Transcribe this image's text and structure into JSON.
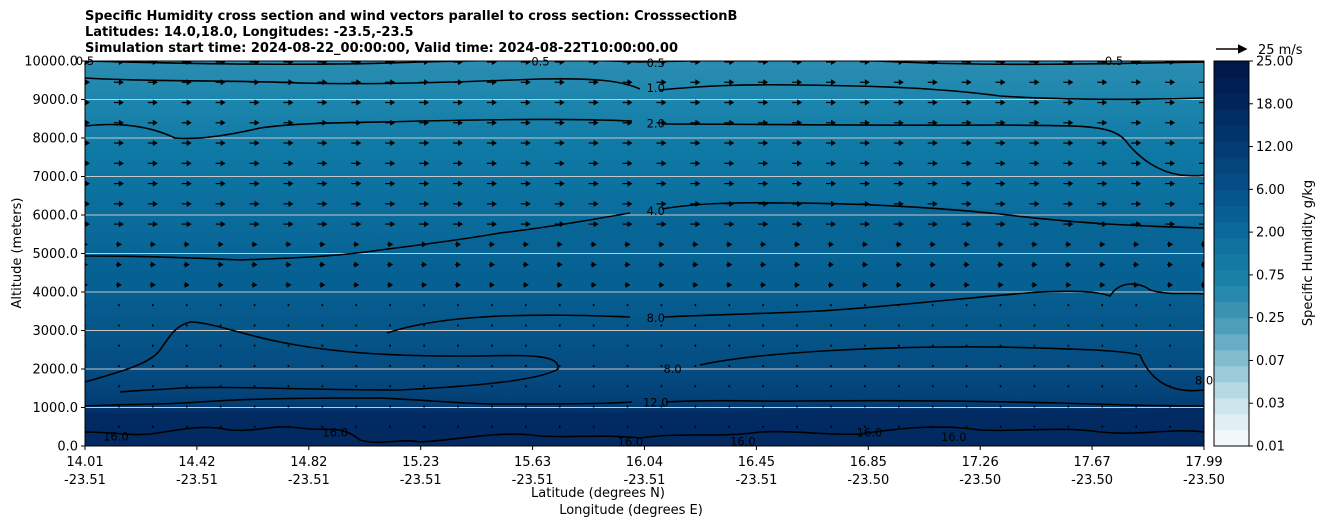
{
  "chart_data": {
    "type": "contour",
    "title_lines": [
      "Specific Humidity cross section and wind vectors parallel to cross section: CrosssectionB",
      "Latitudes: 14.0,18.0, Longitudes: -23.5,-23.5",
      "Simulation start time: 2024-08-22_00:00:00, Valid time: 2024-08-22T10:00:00.00"
    ],
    "ylabel": "Altitude (meters)",
    "xlabel_lines": [
      "Latitude (degrees N)",
      "Longitude (degrees E)"
    ],
    "ylim": [
      0,
      10000
    ],
    "yticks": [
      "0.0",
      "1000.0",
      "2000.0",
      "3000.0",
      "4000.0",
      "5000.0",
      "6000.0",
      "7000.0",
      "8000.0",
      "9000.0",
      "10000.0"
    ],
    "xticks": [
      {
        "lat": "14.01",
        "lon": "-23.51"
      },
      {
        "lat": "14.42",
        "lon": "-23.51"
      },
      {
        "lat": "14.82",
        "lon": "-23.51"
      },
      {
        "lat": "15.23",
        "lon": "-23.51"
      },
      {
        "lat": "15.63",
        "lon": "-23.51"
      },
      {
        "lat": "16.04",
        "lon": "-23.51"
      },
      {
        "lat": "16.45",
        "lon": "-23.51"
      },
      {
        "lat": "16.85",
        "lon": "-23.50"
      },
      {
        "lat": "17.26",
        "lon": "-23.50"
      },
      {
        "lat": "17.67",
        "lon": "-23.50"
      },
      {
        "lat": "17.99",
        "lon": "-23.50"
      }
    ],
    "colorbar": {
      "label": "Specific Humidity g/kg",
      "tick_labels": [
        "0.01",
        "0.03",
        "0.07",
        "0.25",
        "0.75",
        "2.00",
        "6.00",
        "12.00",
        "18.00",
        "25.00"
      ],
      "colors": [
        "#f3f9fb",
        "#e2f0f4",
        "#cde5ec",
        "#b6d9e3",
        "#9dcbd9",
        "#83bccf",
        "#68acc5",
        "#4e9dbb",
        "#3a92b3",
        "#2788ad",
        "#1a80a8",
        "#1479a3",
        "#0f719e",
        "#0b6898",
        "#085f92",
        "#06568b",
        "#054d84",
        "#04457c",
        "#033c74",
        "#02346c",
        "#022c64",
        "#01255b",
        "#011e53",
        "#01184a"
      ]
    },
    "wind_reference": "25 m/s",
    "contour_labels": [
      {
        "value": "0.5",
        "points": [
          [
            "14.01",
            10000
          ],
          [
            "15.63",
            9990
          ],
          [
            "16.04",
            9950
          ],
          [
            "17.67",
            10000
          ]
        ]
      },
      {
        "value": "1.0",
        "points": [
          [
            "16.04",
            9300
          ]
        ]
      },
      {
        "value": "2.0",
        "points": [
          [
            "16.04",
            8380
          ]
        ]
      },
      {
        "value": "4.0",
        "points": [
          [
            "16.04",
            6100
          ]
        ]
      },
      {
        "value": "8.0",
        "points": [
          [
            "16.04",
            3320
          ],
          [
            "16.10",
            2000
          ],
          [
            "17.99",
            1700
          ]
        ]
      },
      {
        "value": "12.0",
        "points": [
          [
            "16.04",
            1130
          ]
        ]
      },
      {
        "value": "16.0",
        "points": [
          [
            "14.12",
            250
          ],
          [
            "14.90",
            350
          ],
          [
            "15.95",
            100
          ],
          [
            "16.35",
            120
          ],
          [
            "16.80",
            350
          ],
          [
            "17.10",
            230
          ]
        ]
      }
    ],
    "grid": "horizontal"
  }
}
